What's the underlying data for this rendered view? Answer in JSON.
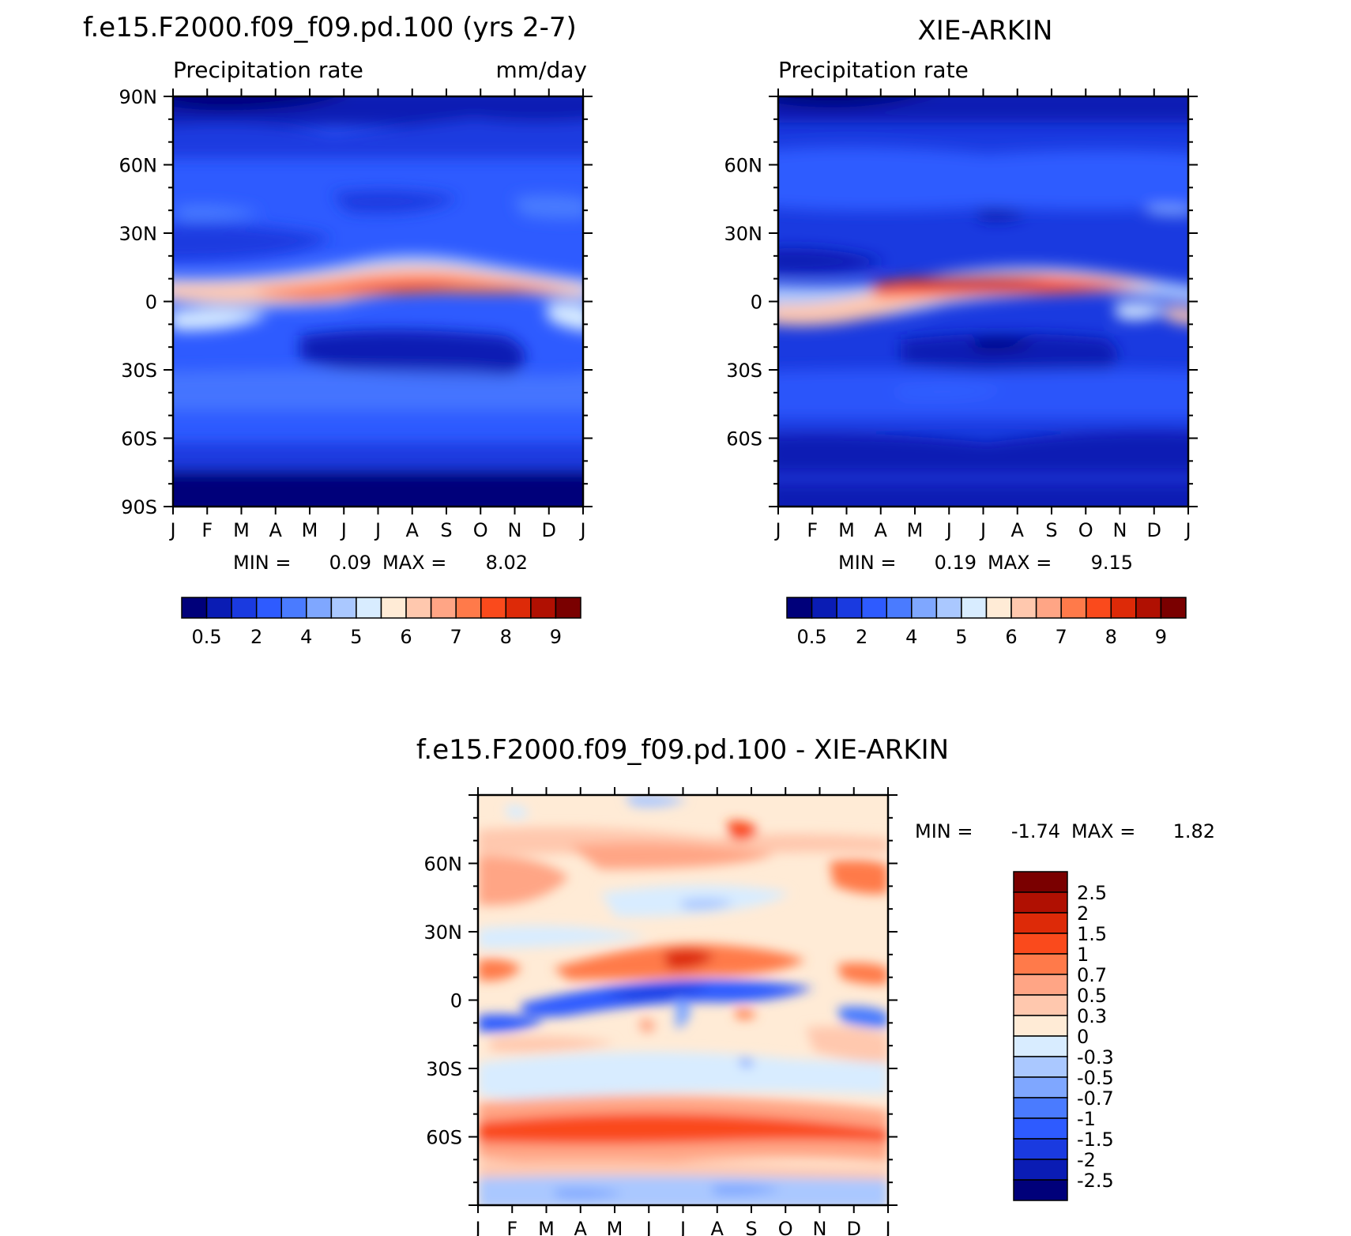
{
  "colors": {
    "abs_scale": [
      "#00007a",
      "#0a1cb4",
      "#1a3ae0",
      "#2e5bff",
      "#4a7bff",
      "#7fa7ff",
      "#aac8ff",
      "#d8ecff",
      "#ffebd6",
      "#ffc8ae",
      "#ffa585",
      "#ff7a4a",
      "#fa4a1c",
      "#dd2a08",
      "#b01002",
      "#7a0000"
    ],
    "diff_scale": [
      "#00007a",
      "#0a1cb4",
      "#1a3ae0",
      "#2e5bff",
      "#4a7bff",
      "#7fa7ff",
      "#aac8ff",
      "#d8ecff",
      "#ffebd6",
      "#ffc8ae",
      "#ffa585",
      "#ff7a4a",
      "#fa4a1c",
      "#dd2a08",
      "#b01002",
      "#7a0000"
    ]
  },
  "panel_model": {
    "title": "f.e15.F2000.f09_f09.pd.100 (yrs 2-7)",
    "left_string": "Precipitation rate",
    "right_string": "mm/day",
    "stats": {
      "min_label": "MIN =",
      "min": "0.09",
      "max_label": "MAX =",
      "max": "8.02"
    }
  },
  "panel_obs": {
    "title": "XIE-ARKIN",
    "left_string": "Precipitation rate",
    "stats": {
      "min_label": "MIN =",
      "min": "0.19",
      "max_label": "MAX =",
      "max": "9.15"
    }
  },
  "panel_diff": {
    "title": "f.e15.F2000.f09_f09.pd.100 - XIE-ARKIN",
    "stats": {
      "min_label": "MIN =",
      "min": "-1.74",
      "max_label": "MAX =",
      "max": "1.82"
    }
  },
  "chart_data": [
    {
      "type": "heatmap",
      "title": "f.e15.F2000.f09_f09.pd.100 (yrs 2-7)",
      "left_string": "Precipitation rate",
      "right_string": "mm/day",
      "x_ticks": [
        "J",
        "F",
        "M",
        "A",
        "M",
        "J",
        "J",
        "A",
        "S",
        "O",
        "N",
        "D",
        "J"
      ],
      "y_ticks": [
        "90N",
        "60N",
        "30N",
        "0",
        "30S",
        "60S",
        "90S"
      ],
      "ylim": [
        -90,
        90
      ],
      "colorbar_labels": [
        "0.5",
        "2",
        "4",
        "5",
        "6",
        "7",
        "8",
        "9"
      ],
      "colorbar_levels": [
        0.2,
        0.5,
        1,
        2,
        3,
        4,
        5,
        5.5,
        6,
        6.5,
        7,
        7.5,
        8,
        8.5,
        9
      ],
      "min": 0.09,
      "max": 8.02
    },
    {
      "type": "heatmap",
      "title": "XIE-ARKIN",
      "left_string": "Precipitation rate",
      "x_ticks": [
        "J",
        "F",
        "M",
        "A",
        "M",
        "J",
        "J",
        "A",
        "S",
        "O",
        "N",
        "D",
        "J"
      ],
      "y_ticks": [
        "60N",
        "30N",
        "0",
        "30S",
        "60S"
      ],
      "ylim": [
        -90,
        90
      ],
      "colorbar_labels": [
        "0.5",
        "2",
        "4",
        "5",
        "6",
        "7",
        "8",
        "9"
      ],
      "colorbar_levels": [
        0.2,
        0.5,
        1,
        2,
        3,
        4,
        5,
        5.5,
        6,
        6.5,
        7,
        7.5,
        8,
        8.5,
        9
      ],
      "min": 0.19,
      "max": 9.15
    },
    {
      "type": "heatmap",
      "title": "f.e15.F2000.f09_f09.pd.100 - XIE-ARKIN",
      "x_ticks": [
        "J",
        "F",
        "M",
        "A",
        "M",
        "J",
        "J",
        "A",
        "S",
        "O",
        "N",
        "D",
        "J"
      ],
      "y_ticks": [
        "60N",
        "30N",
        "0",
        "30S",
        "60S"
      ],
      "ylim": [
        -90,
        90
      ],
      "colorbar_labels": [
        "2.5",
        "2",
        "1.5",
        "1",
        "0.7",
        "0.5",
        "0.3",
        "0",
        "-0.3",
        "-0.5",
        "-0.7",
        "-1",
        "-1.5",
        "-2",
        "-2.5"
      ],
      "min": -1.74,
      "max": 1.82
    }
  ]
}
